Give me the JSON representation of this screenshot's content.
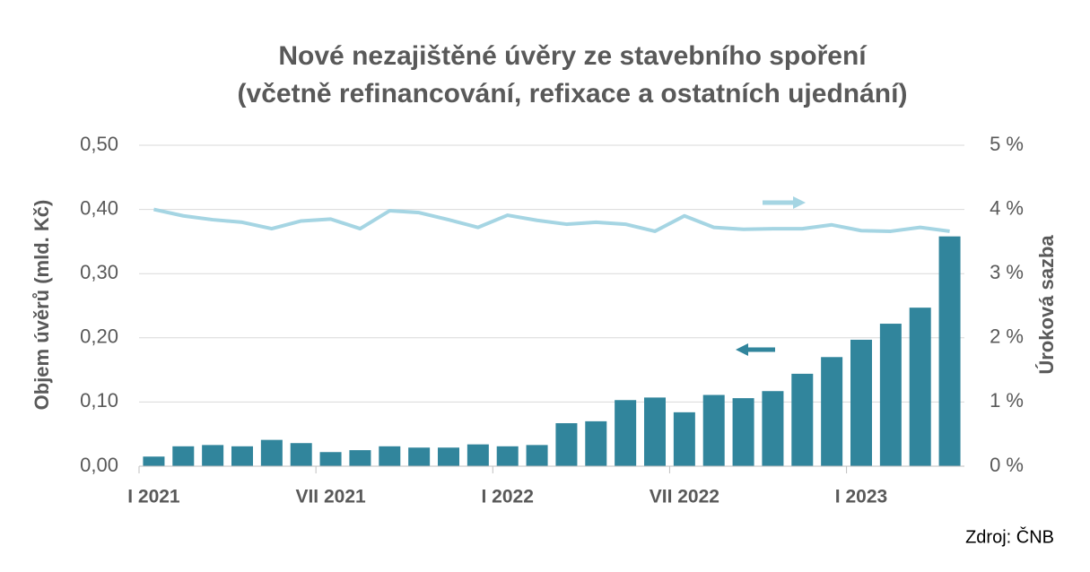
{
  "chart_data": {
    "type": "bar_line",
    "title": "Nové nezajištěné úvěry ze stavebního spoření",
    "subtitle": "(včetně refinancování, refixace a ostatních ujednání)",
    "y_label": "Objem úvěrů (mld. Kč)",
    "y2_label": "Úroková sazba",
    "source": "Zdroj: ČNB",
    "categories": [
      "I 2021",
      null,
      null,
      null,
      null,
      null,
      "VII 2021",
      null,
      null,
      null,
      null,
      null,
      "I 2022",
      null,
      null,
      null,
      null,
      null,
      "VII 2022",
      null,
      null,
      null,
      null,
      null,
      "I 2023",
      null,
      null,
      null
    ],
    "series": [
      {
        "type": "bar",
        "color": "#31859c",
        "values": [
          0.015,
          0.031,
          0.033,
          0.031,
          0.041,
          0.036,
          0.022,
          0.025,
          0.031,
          0.029,
          0.029,
          0.034,
          0.031,
          0.033,
          0.067,
          0.07,
          0.103,
          0.107,
          0.084,
          0.111,
          0.106,
          0.117,
          0.144,
          0.17,
          0.197,
          0.222,
          0.247,
          0.358
        ]
      },
      {
        "type": "line",
        "axis": "y2",
        "color": "#a5d5e3",
        "values": [
          4.0,
          3.9,
          3.84,
          3.8,
          3.7,
          3.82,
          3.85,
          3.7,
          3.98,
          3.95,
          3.84,
          3.72,
          3.91,
          3.83,
          3.77,
          3.8,
          3.77,
          3.66,
          3.9,
          3.72,
          3.69,
          3.7,
          3.7,
          3.76,
          3.67,
          3.66,
          3.72,
          3.66
        ]
      }
    ],
    "ylim": [
      0,
      0.5
    ],
    "yticks": [
      {
        "value": 0,
        "label": "0,00"
      },
      {
        "value": 0.1,
        "label": "0,10"
      },
      {
        "value": 0.2,
        "label": "0,20"
      },
      {
        "value": 0.3,
        "label": "0,30"
      },
      {
        "value": 0.4,
        "label": "0,40"
      },
      {
        "value": 0.5,
        "label": "0,50"
      }
    ],
    "y2lim": [
      0,
      5
    ],
    "y2ticks": [
      {
        "value": 0,
        "label": "0 %"
      },
      {
        "value": 1,
        "label": "1 %"
      },
      {
        "value": 2,
        "label": "2 %"
      },
      {
        "value": 3,
        "label": "3 %"
      },
      {
        "value": 4,
        "label": "4 %"
      },
      {
        "value": 5,
        "label": "5 %"
      }
    ],
    "grid": true
  }
}
